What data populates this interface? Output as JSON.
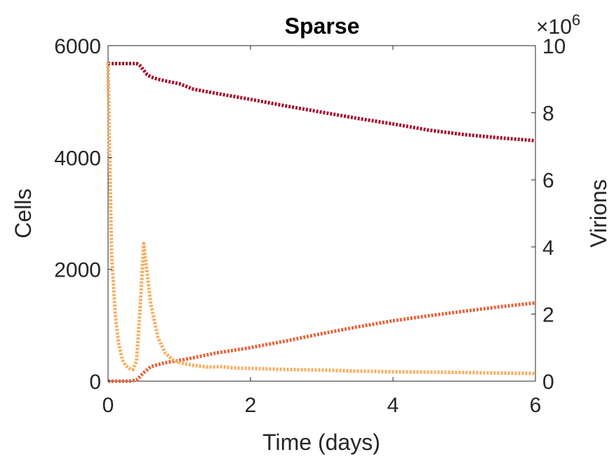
{
  "chart_data": {
    "type": "line",
    "title": "Sparse",
    "xlabel": "Time (days)",
    "ylabel_left": "Cells",
    "ylabel_right": "Virions",
    "right_axis_multiplier": "×10",
    "right_axis_exponent": "6",
    "xlim": [
      0,
      6
    ],
    "ylim_left": [
      0,
      6000
    ],
    "ylim_right": [
      0,
      10000000
    ],
    "x_ticks": [
      "0",
      "2",
      "4",
      "6"
    ],
    "y_left_ticks": [
      "0",
      "2000",
      "4000",
      "6000"
    ],
    "y_right_ticks": [
      "0",
      "2",
      "4",
      "6",
      "8",
      "10"
    ],
    "grid": false,
    "series": [
      {
        "axis": "left",
        "color": "#a50f2d",
        "x": [
          0.0,
          0.2,
          0.4,
          0.45,
          0.5,
          0.55,
          0.6,
          0.7,
          0.8,
          1.0,
          1.2,
          1.5,
          2.0,
          2.5,
          3.0,
          3.5,
          4.0,
          4.5,
          5.0,
          5.5,
          6.0
        ],
        "y": [
          5680,
          5680,
          5680,
          5640,
          5560,
          5480,
          5440,
          5400,
          5370,
          5320,
          5220,
          5150,
          5040,
          4920,
          4810,
          4700,
          4600,
          4490,
          4410,
          4350,
          4300
        ]
      },
      {
        "axis": "left",
        "color": "#e8643c",
        "x": [
          0.0,
          0.3,
          0.4,
          0.5,
          0.6,
          0.8,
          1.0,
          1.2,
          1.5,
          2.0,
          2.5,
          3.0,
          3.5,
          4.0,
          4.5,
          5.0,
          5.5,
          6.0
        ],
        "y": [
          0,
          0,
          20,
          150,
          260,
          330,
          370,
          420,
          500,
          600,
          720,
          850,
          970,
          1080,
          1170,
          1250,
          1330,
          1400
        ]
      },
      {
        "axis": "right",
        "color": "#fbac5e",
        "x": [
          0.0,
          0.02,
          0.05,
          0.1,
          0.15,
          0.2,
          0.25,
          0.3,
          0.35,
          0.4,
          0.45,
          0.5,
          0.55,
          0.6,
          0.7,
          0.8,
          0.9,
          1.0,
          1.2,
          1.4,
          1.6,
          1.8,
          2.0,
          2.5,
          3.0,
          3.5,
          4.0,
          4.5,
          5.0,
          5.5,
          6.0
        ],
        "y": [
          9500000,
          7000000,
          3800000,
          2000000,
          1100000,
          650000,
          450000,
          380000,
          350000,
          600000,
          2200000,
          4100000,
          3200000,
          2300000,
          1300000,
          850000,
          650000,
          550000,
          470000,
          420000,
          430000,
          390000,
          380000,
          350000,
          330000,
          300000,
          280000,
          270000,
          260000,
          240000,
          230000
        ]
      }
    ]
  }
}
